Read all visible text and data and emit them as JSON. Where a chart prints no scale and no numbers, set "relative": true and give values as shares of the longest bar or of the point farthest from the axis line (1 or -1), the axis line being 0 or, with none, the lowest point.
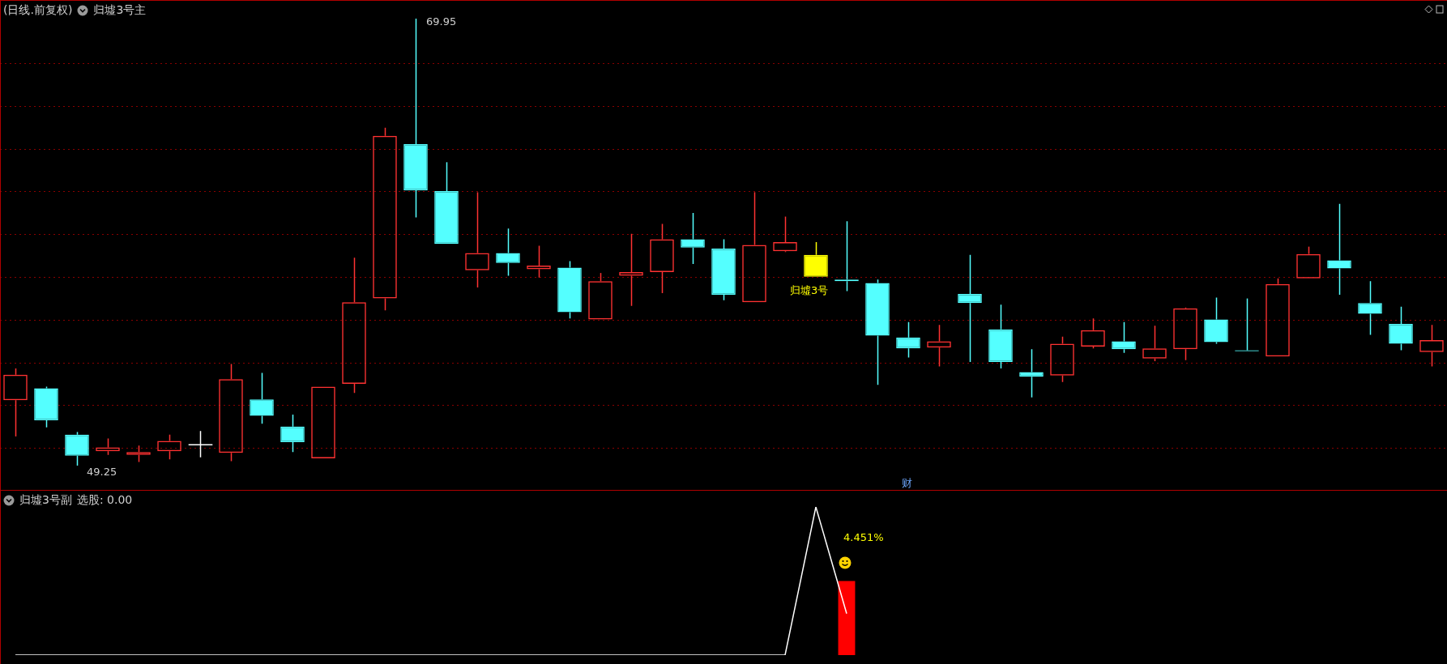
{
  "chart_data": [
    {
      "type": "candlestick",
      "title": "(日线.前复权)",
      "subtitle": "归墟3号主",
      "grid": "y",
      "legend": false,
      "yticks": [
        {
          "value": 50.05,
          "label": null
        },
        {
          "value": 52.03,
          "label": null
        },
        {
          "value": 54.01,
          "label": null
        },
        {
          "value": 55.99,
          "label": null
        },
        {
          "value": 57.97,
          "label": null
        },
        {
          "value": 59.95,
          "label": null
        },
        {
          "value": 61.93,
          "label": null
        },
        {
          "value": 63.91,
          "label": null
        },
        {
          "value": 65.89,
          "label": null
        },
        {
          "value": 67.87,
          "label": null
        }
      ],
      "categories": [
        null,
        null,
        null,
        null,
        null,
        null,
        null,
        null,
        null,
        null,
        null,
        null,
        null,
        null,
        null,
        null,
        null,
        null,
        null,
        null,
        null,
        null,
        null,
        null,
        null,
        null,
        null,
        null,
        null,
        null,
        null,
        null,
        null,
        null,
        null,
        null,
        null,
        null,
        null,
        null,
        null,
        null,
        null,
        null,
        null,
        null,
        null
      ],
      "ohlc": [
        [
          52.28,
          53.75,
          50.6,
          53.46
        ],
        [
          52.83,
          52.91,
          51.02,
          51.35
        ],
        [
          50.68,
          50.81,
          49.25,
          49.71
        ],
        [
          49.92,
          50.51,
          49.75,
          50.09
        ],
        [
          49.75,
          50.18,
          49.42,
          49.88
        ],
        [
          49.92,
          50.68,
          49.54,
          50.39
        ],
        [
          50.22,
          50.85,
          49.63,
          50.22
        ],
        [
          49.84,
          53.96,
          49.46,
          53.25
        ],
        [
          52.32,
          53.54,
          51.19,
          51.56
        ],
        [
          51.06,
          51.61,
          49.88,
          50.34
        ],
        [
          49.59,
          52.91,
          49.59,
          52.91
        ],
        [
          53.04,
          58.88,
          52.62,
          56.82
        ],
        [
          56.99,
          64.9,
          56.44,
          64.52
        ],
        [
          64.14,
          69.95,
          60.74,
          62.0
        ],
        [
          61.96,
          63.3,
          59.52,
          59.52
        ],
        [
          58.3,
          61.91,
          57.5,
          59.09
        ],
        [
          59.09,
          60.23,
          58.04,
          58.63
        ],
        [
          58.34,
          59.43,
          57.96,
          58.51
        ],
        [
          58.42,
          58.72,
          56.07,
          56.36
        ],
        [
          56.02,
          58.17,
          56.02,
          57.79
        ],
        [
          58.04,
          59.98,
          56.65,
          58.21
        ],
        [
          58.21,
          60.44,
          57.24,
          59.73
        ],
        [
          59.73,
          60.95,
          58.59,
          59.35
        ],
        [
          59.3,
          59.73,
          56.91,
          57.16
        ],
        [
          56.82,
          61.91,
          56.82,
          59.47
        ],
        [
          59.18,
          60.78,
          59.14,
          59.6
        ],
        [
          59.01,
          59.6,
          58.0,
          58.0
        ],
        [
          57.87,
          60.57,
          57.33,
          57.79
        ],
        [
          57.71,
          57.87,
          52.99,
          55.27
        ],
        [
          55.18,
          55.9,
          54.26,
          54.68
        ],
        [
          54.72,
          55.77,
          53.84,
          55.01
        ],
        [
          57.2,
          59.01,
          54.05,
          56.78
        ],
        [
          55.56,
          56.7,
          53.75,
          54.05
        ],
        [
          53.58,
          54.64,
          52.41,
          53.37
        ],
        [
          53.42,
          55.22,
          53.12,
          54.89
        ],
        [
          54.76,
          56.07,
          54.68,
          55.52
        ],
        [
          55.01,
          55.9,
          54.47,
          54.64
        ],
        [
          54.21,
          55.73,
          54.09,
          54.68
        ],
        [
          54.64,
          56.57,
          54.13,
          56.53
        ],
        [
          56.02,
          57.03,
          54.89,
          54.97
        ],
        [
          54.59,
          56.99,
          54.55,
          54.55
        ],
        [
          54.3,
          57.92,
          54.3,
          57.66
        ],
        [
          57.92,
          59.39,
          57.92,
          59.05
        ],
        [
          58.76,
          61.37,
          57.16,
          58.38
        ],
        [
          56.78,
          57.79,
          55.31,
          56.28
        ],
        [
          55.81,
          56.61,
          54.59,
          54.89
        ],
        [
          54.51,
          55.77,
          53.84,
          55.06
        ]
      ],
      "colors": [
        "#ff3232",
        "#54ffff",
        "#54ffff",
        "#ff3232",
        "#ff3232",
        "#ff3232",
        "#ffffff",
        "#ff3232",
        "#54ffff",
        "#54ffff",
        "#ff3232",
        "#ff3232",
        "#ff3232",
        "#54ffff",
        "#54ffff",
        "#ff3232",
        "#54ffff",
        "#ff3232",
        "#54ffff",
        "#ff3232",
        "#ff3232",
        "#ff3232",
        "#54ffff",
        "#54ffff",
        "#ff3232",
        "#ff3232",
        "#ffff00",
        "#54ffff",
        "#54ffff",
        "#54ffff",
        "#ff3232",
        "#54ffff",
        "#54ffff",
        "#54ffff",
        "#ff3232",
        "#ff3232",
        "#54ffff",
        "#ff3232",
        "#ff3232",
        "#54ffff",
        "#54ffff",
        "#ff3232",
        "#ff3232",
        "#54ffff",
        "#54ffff",
        "#54ffff",
        "#ff3232"
      ],
      "annotations": [
        "69.95",
        "49.25",
        "归墟3号",
        "财"
      ]
    },
    {
      "type": "bar",
      "title": "归墟3号副",
      "relative": true,
      "legend": false,
      "categories": [
        null,
        null,
        null,
        null,
        null,
        null,
        null,
        null,
        null,
        null,
        null,
        null,
        null,
        null,
        null,
        null,
        null,
        null,
        null,
        null,
        null,
        null,
        null,
        null,
        null,
        null,
        null,
        null,
        null,
        null,
        null,
        null,
        null,
        null,
        null,
        null,
        null,
        null,
        null,
        null,
        null,
        null,
        null,
        null,
        null,
        null,
        null
      ],
      "series": [
        {
          "type": "line",
          "color": "#ffffff",
          "values": [
            0,
            0,
            0,
            0,
            0,
            0,
            0,
            0,
            0,
            0,
            0,
            0,
            0,
            0,
            0,
            0,
            0,
            0,
            0,
            0,
            0,
            0,
            0,
            0,
            0,
            0,
            1,
            0.28,
            null,
            null,
            null,
            null,
            null,
            null,
            null,
            null,
            null,
            null,
            null,
            null,
            null,
            null,
            null,
            null,
            null,
            null,
            null
          ]
        },
        {
          "type": "bar",
          "color": "#ff0000",
          "values": [
            null,
            null,
            null,
            null,
            null,
            null,
            null,
            null,
            null,
            null,
            null,
            null,
            null,
            null,
            null,
            null,
            null,
            null,
            null,
            null,
            null,
            null,
            null,
            null,
            null,
            null,
            null,
            0.5,
            null,
            null,
            null,
            null,
            null,
            null,
            null,
            null,
            null,
            null,
            null,
            null,
            null,
            null,
            null,
            null,
            null,
            null,
            null
          ]
        }
      ],
      "annotations": [
        "选股: 0.00",
        "4.451%"
      ]
    }
  ]
}
